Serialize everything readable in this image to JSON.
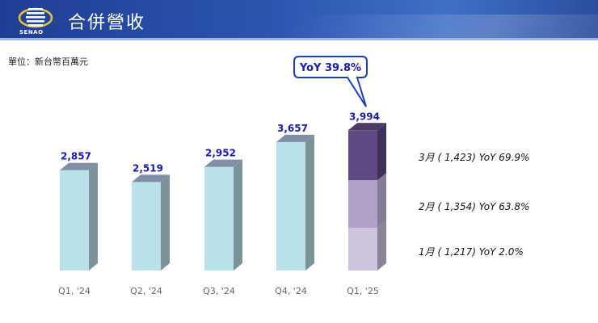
{
  "header": {
    "title": "合併營收",
    "logo_text": "SENAO"
  },
  "unit_label": "單位：新台幣百萬元",
  "chart_data": {
    "type": "bar",
    "categories": [
      "Q1, '24",
      "Q2, '24",
      "Q3, '24",
      "Q4, '24",
      "Q1, '25"
    ],
    "values": [
      2857,
      2519,
      2952,
      3657,
      3994
    ],
    "value_labels": [
      "2,857",
      "2,519",
      "2,952",
      "3,657",
      "3,994"
    ],
    "ylim": [
      0,
      4000
    ],
    "stacked_last": [
      {
        "name": "1月",
        "value": 1217,
        "label": "1月 ( 1,217)  YoY   2.0%",
        "color": "#cdc3dd"
      },
      {
        "name": "2月",
        "value": 1354,
        "label": "2月 ( 1,354)  YoY 63.8%",
        "color": "#b0a1c9"
      },
      {
        "name": "3月",
        "value": 1423,
        "label": "3月 ( 1,423)  YoY 69.9%",
        "color": "#5f4a84"
      }
    ],
    "callout": "YoY 39.8%",
    "colors": {
      "bar_front": "#b9e2e8",
      "bar_side": "#7b9398",
      "bar_top": "#808fa5",
      "value_label": "#1a1ab0",
      "callout_border": "#1a3fbf"
    }
  }
}
